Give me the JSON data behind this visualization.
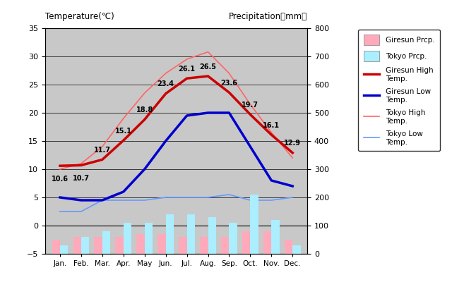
{
  "months": [
    "Jan.",
    "Feb.",
    "Mar.",
    "Apr.",
    "May",
    "Jun.",
    "Jul.",
    "Aug.",
    "Sep.",
    "Oct.",
    "Nov.",
    "Dec."
  ],
  "giresun_high": [
    10.6,
    10.7,
    11.7,
    15.1,
    18.8,
    23.4,
    26.1,
    26.5,
    23.6,
    19.7,
    16.1,
    12.9
  ],
  "giresun_low": [
    5.0,
    4.5,
    4.5,
    6.0,
    10.0,
    15.0,
    19.5,
    20.0,
    20.0,
    14.0,
    8.0,
    7.0
  ],
  "tokyo_high": [
    10.0,
    11.0,
    14.0,
    19.0,
    23.5,
    27.0,
    29.5,
    30.8,
    27.0,
    21.5,
    16.5,
    12.0
  ],
  "tokyo_low": [
    2.5,
    2.5,
    4.5,
    4.5,
    4.5,
    5.0,
    5.0,
    5.0,
    5.5,
    4.5,
    4.5,
    5.0
  ],
  "giresun_prcp_mm": [
    50,
    60,
    60,
    60,
    70,
    70,
    60,
    60,
    60,
    80,
    80,
    50
  ],
  "tokyo_prcp_mm": [
    30,
    60,
    80,
    110,
    110,
    140,
    140,
    130,
    110,
    210,
    120,
    30
  ],
  "giresun_high_color": "#cc0000",
  "giresun_low_color": "#0000cc",
  "tokyo_high_color": "#ff6666",
  "tokyo_low_color": "#6699ff",
  "giresun_prcp_color": "#ffaabb",
  "tokyo_prcp_color": "#aaeeff",
  "bg_color": "#c8c8c8",
  "title_left": "Temperature(℃)",
  "title_right": "Precipitation（mm）",
  "ylim_temp": [
    -5,
    35
  ],
  "ylim_prcp": [
    0,
    800
  ],
  "yticks_temp": [
    -5,
    0,
    5,
    10,
    15,
    20,
    25,
    30,
    35
  ],
  "yticks_prcp": [
    0,
    100,
    200,
    300,
    400,
    500,
    600,
    700,
    800
  ],
  "gh_label_dy": [
    -10,
    -10,
    6,
    6,
    6,
    6,
    6,
    6,
    6,
    6,
    6,
    6
  ],
  "legend_labels": [
    "Giresun Prcp.",
    "Tokyo Prcp.",
    "Giresun High\nTemp.",
    "Giresun Low\nTemp.",
    "Tokyo High\nTemp.",
    "Tokyo Low\nTemp."
  ]
}
